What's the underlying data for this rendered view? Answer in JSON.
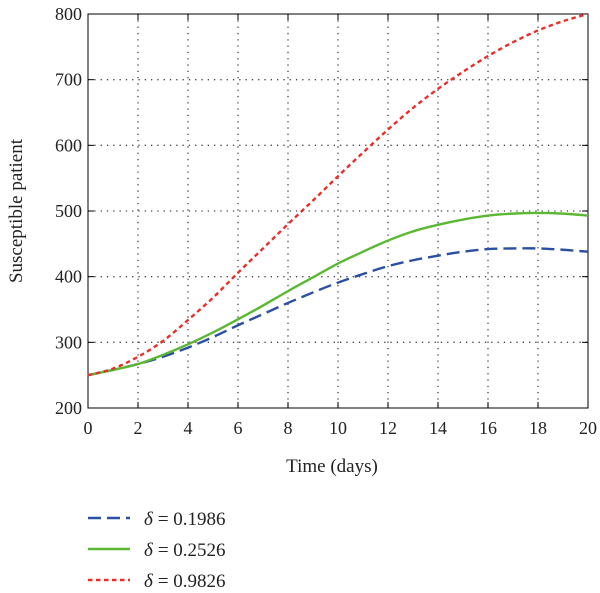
{
  "chart_data": {
    "type": "line",
    "xlabel": "Time (days)",
    "ylabel": "Susceptible patient",
    "xlim": [
      0,
      20
    ],
    "ylim": [
      200,
      800
    ],
    "xticks": [
      0,
      2,
      4,
      6,
      8,
      10,
      12,
      14,
      16,
      18,
      20
    ],
    "yticks": [
      200,
      300,
      400,
      500,
      600,
      700,
      800
    ],
    "grid": true,
    "legend_position": "bottom-left, below plot",
    "x": [
      0,
      1,
      2,
      3,
      4,
      5,
      6,
      7,
      8,
      9,
      10,
      11,
      12,
      13,
      14,
      15,
      16,
      17,
      18,
      19,
      20
    ],
    "series": [
      {
        "name": "δ = 0.1986",
        "symbol": "δ",
        "value_text": "= 0.1986",
        "color": "#2b4fa3",
        "style": "dashed",
        "values": [
          250,
          258,
          267,
          278,
          292,
          308,
          326,
          343,
          360,
          376,
          391,
          404,
          416,
          425,
          432,
          438,
          442,
          443,
          443,
          441,
          438
        ]
      },
      {
        "name": "δ = 0.2526",
        "symbol": "δ",
        "value_text": "= 0.2526",
        "color": "#5bb833",
        "style": "solid",
        "values": [
          250,
          258,
          267,
          281,
          297,
          315,
          335,
          356,
          378,
          399,
          420,
          438,
          455,
          469,
          479,
          487,
          493,
          496,
          497,
          496,
          493
        ]
      },
      {
        "name": "δ = 0.9826",
        "symbol": "δ",
        "value_text": "= 0.9826",
        "color": "#e8302a",
        "style": "dotted",
        "values": [
          250,
          260,
          278,
          302,
          334,
          368,
          406,
          443,
          480,
          516,
          553,
          589,
          624,
          657,
          686,
          712,
          736,
          757,
          775,
          789,
          800
        ]
      }
    ]
  }
}
